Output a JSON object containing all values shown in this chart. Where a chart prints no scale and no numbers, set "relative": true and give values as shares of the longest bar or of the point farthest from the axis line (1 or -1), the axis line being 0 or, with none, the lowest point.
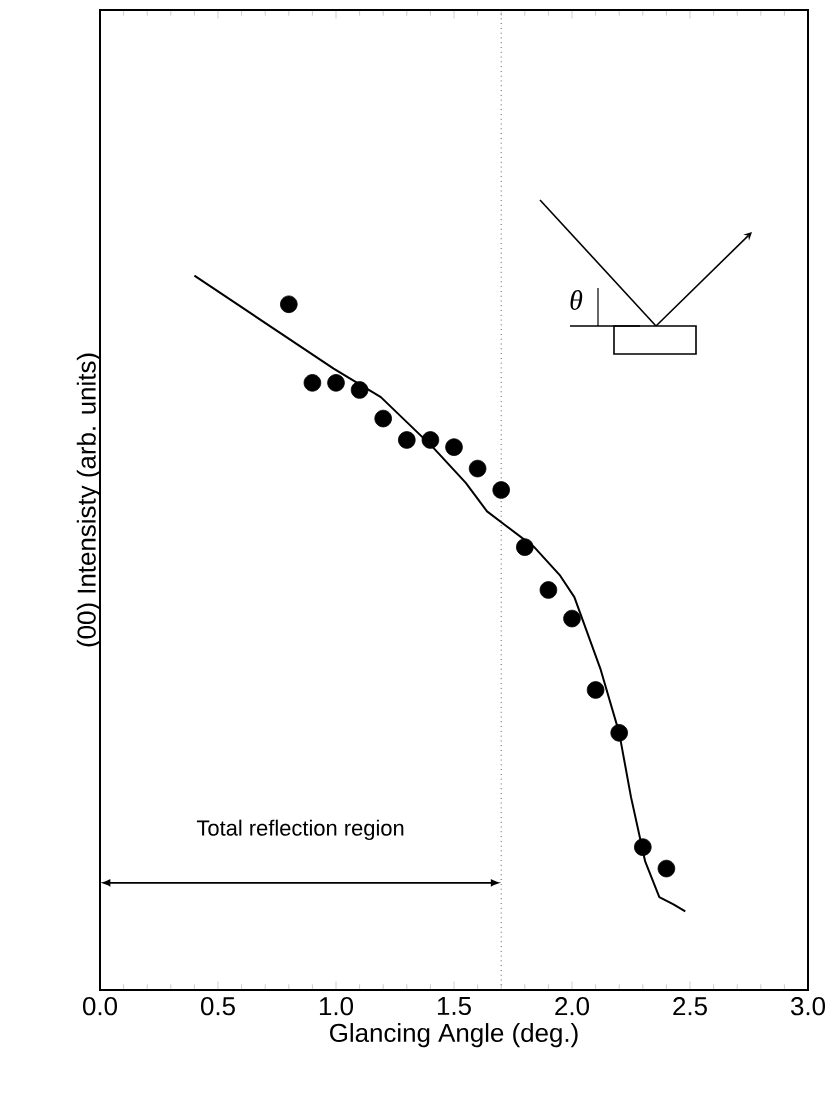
{
  "chart_data": {
    "type": "scatter",
    "xlabel": "Glancing Angle (deg.)",
    "ylabel": "(00) Intensisty (arb. units)",
    "relative": true,
    "xlim": [
      0,
      3
    ],
    "xticks": [
      {
        "value": 0,
        "label": "0.0"
      },
      0.5,
      {
        "value": 1,
        "label": "1.0"
      },
      1.5,
      {
        "value": 2,
        "label": "2.0"
      },
      2.5,
      {
        "value": 3,
        "label": "3.0"
      }
    ],
    "tick_labels": "x",
    "series": [
      {
        "marker": "circle",
        "color": "#000000",
        "x": [
          0.8,
          0.9,
          1.0,
          1.1,
          1.2,
          1.3,
          1.4,
          1.5,
          1.6,
          1.7,
          1.8,
          1.9,
          2.0,
          2.1,
          2.2,
          2.3,
          2.4
        ],
        "values": [
          0.96,
          0.85,
          0.85,
          0.84,
          0.8,
          0.77,
          0.77,
          0.76,
          0.73,
          0.7,
          0.62,
          0.56,
          0.52,
          0.42,
          0.36,
          0.2,
          0.17
        ]
      },
      {
        "type": "line",
        "color": "#000000",
        "marker": "none",
        "line_style": "solid",
        "x": [
          0.4,
          0.99,
          1.19,
          1.41,
          1.55,
          1.64,
          1.72,
          1.84,
          1.95,
          2.01,
          2.12,
          2.2,
          2.25,
          2.31,
          2.37,
          2.43,
          2.48
        ],
        "values": [
          1.0,
          0.87,
          0.83,
          0.76,
          0.71,
          0.67,
          0.65,
          0.62,
          0.58,
          0.55,
          0.45,
          0.36,
          0.27,
          0.18,
          0.13,
          0.12,
          0.11
        ]
      }
    ],
    "ref_lines": [
      {
        "axis": "x",
        "value": 1.7,
        "line_style": "dotted",
        "color": "#000000"
      }
    ],
    "annotations": [
      "Total reflection region",
      "θ"
    ]
  }
}
